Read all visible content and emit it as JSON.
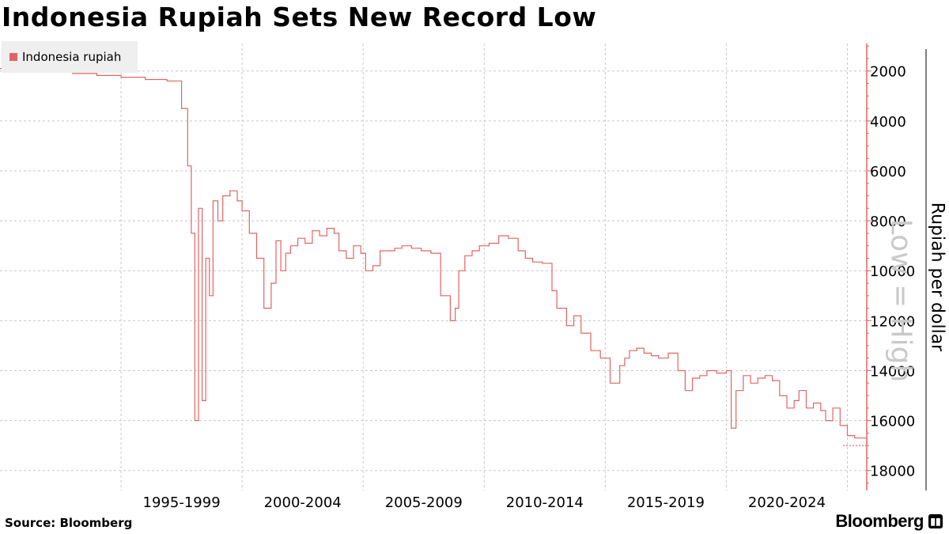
{
  "title": "Indonesia Rupiah Sets New Record Low",
  "source": "Source: Bloomberg",
  "brand": "Bloomberg",
  "annotation": "Low = High",
  "chart_data": {
    "type": "line",
    "title": "Indonesia Rupiah Sets New Record Low",
    "ylabel": "Rupiah per dollar",
    "xlabel": "",
    "y_inverted": true,
    "ylim": [
      18800,
      900
    ],
    "y_ticks": [
      2000,
      4000,
      6000,
      8000,
      10000,
      12000,
      14000,
      16000,
      18000
    ],
    "x_tick_labels": [
      "1995-1999",
      "2000-2004",
      "2005-2009",
      "2010-2014",
      "2015-2019",
      "2020-2024"
    ],
    "xlim": [
      1990.0,
      2025.8
    ],
    "grid": true,
    "legend_position": "top-left",
    "series": [
      {
        "name": "Indonesia rupiah",
        "color": "#e26565",
        "x": [
          1990.0,
          1991.0,
          1992.0,
          1993.0,
          1994.0,
          1995.0,
          1996.0,
          1996.9,
          1997.5,
          1997.75,
          1997.9,
          1998.05,
          1998.2,
          1998.35,
          1998.5,
          1998.65,
          1998.8,
          1999.0,
          1999.2,
          1999.5,
          1999.8,
          2000.0,
          2000.3,
          2000.6,
          2000.9,
          2001.2,
          2001.4,
          2001.6,
          2001.8,
          2002.0,
          2002.3,
          2002.6,
          2002.9,
          2003.2,
          2003.5,
          2003.8,
          2004.0,
          2004.3,
          2004.6,
          2004.9,
          2005.1,
          2005.4,
          2005.7,
          2006.0,
          2006.3,
          2006.6,
          2007.0,
          2007.4,
          2007.8,
          2008.2,
          2008.6,
          2008.8,
          2008.95,
          2009.2,
          2009.5,
          2009.8,
          2010.2,
          2010.6,
          2011.0,
          2011.4,
          2011.7,
          2012.0,
          2012.4,
          2012.8,
          2013.0,
          2013.4,
          2013.7,
          2014.0,
          2014.4,
          2014.8,
          2015.2,
          2015.6,
          2015.8,
          2016.0,
          2016.3,
          2016.6,
          2016.9,
          2017.2,
          2017.6,
          2018.0,
          2018.3,
          2018.6,
          2018.9,
          2019.2,
          2019.6,
          2020.0,
          2020.2,
          2020.4,
          2020.7,
          2021.0,
          2021.3,
          2021.6,
          2021.9,
          2022.2,
          2022.5,
          2022.8,
          2023.0,
          2023.3,
          2023.6,
          2023.9,
          2024.1,
          2024.4,
          2024.7,
          2025.0,
          2025.3,
          2025.8
        ],
        "values": [
          1900,
          1950,
          2030,
          2100,
          2180,
          2250,
          2340,
          2400,
          3500,
          5800,
          8500,
          16000,
          7500,
          15200,
          9500,
          11000,
          7200,
          8000,
          7000,
          6800,
          7200,
          7600,
          8500,
          9500,
          11500,
          10500,
          8800,
          10000,
          9300,
          9000,
          8700,
          8900,
          8400,
          8600,
          8300,
          8500,
          9200,
          9500,
          9000,
          9300,
          10000,
          9800,
          9200,
          9200,
          9100,
          9000,
          9100,
          9200,
          9300,
          11000,
          12000,
          11500,
          10000,
          9400,
          9200,
          9000,
          8900,
          8600,
          8700,
          9200,
          9500,
          9650,
          9700,
          10800,
          11500,
          12200,
          11800,
          12500,
          13200,
          13500,
          14500,
          13800,
          13500,
          13200,
          13100,
          13300,
          13400,
          13500,
          13300,
          14000,
          14800,
          14300,
          14200,
          14000,
          14100,
          14000,
          16300,
          14800,
          14200,
          14500,
          14300,
          14200,
          14400,
          15000,
          15500,
          15200,
          14800,
          15500,
          15300,
          15600,
          16000,
          15500,
          16200,
          16600,
          16700,
          17000
        ]
      }
    ]
  }
}
